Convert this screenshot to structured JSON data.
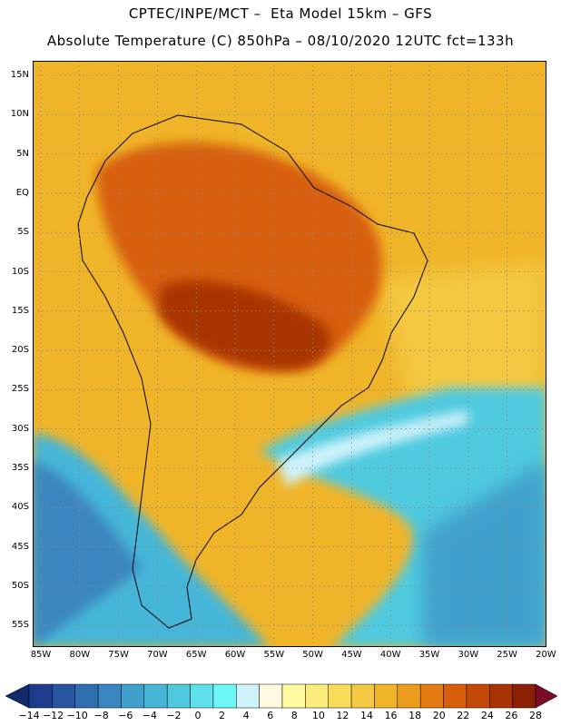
{
  "title_line1": "CPTEC/INPE/MCT –  Eta Model 15km – GFS",
  "title_line2": "Absolute Temperature (C) 850hPa – 08/10/2020 12UTC fct=133h",
  "lat_labels": [
    "15N",
    "10N",
    "5N",
    "EQ",
    "5S",
    "10S",
    "15S",
    "20S",
    "25S",
    "30S",
    "35S",
    "40S",
    "45S",
    "50S",
    "55S"
  ],
  "lon_labels": [
    "85W",
    "80W",
    "75W",
    "70W",
    "65W",
    "60W",
    "55W",
    "50W",
    "45W",
    "40W",
    "35W",
    "30W",
    "25W",
    "20W"
  ],
  "colorbar": {
    "labels": [
      "-14",
      "-12",
      "-10",
      "-8",
      "-6",
      "-4",
      "-2",
      "0",
      "2",
      "4",
      "6",
      "8",
      "10",
      "12",
      "14",
      "16",
      "18",
      "20",
      "22",
      "24",
      "26",
      "28"
    ],
    "colors": [
      "#1e3c8c",
      "#2855a0",
      "#2f6eb0",
      "#3a86c0",
      "#3fa0cc",
      "#45b6d8",
      "#4fcadf",
      "#5fe0ea",
      "#6cf6f6",
      "#cff3fb",
      "#fff9e0",
      "#fffaa0",
      "#fcec7c",
      "#f8dc5a",
      "#f4c840",
      "#f0b428",
      "#ec9c1c",
      "#e47c14",
      "#d85e0c",
      "#c24808",
      "#a83406",
      "#8c2005"
    ],
    "arrow_left_color": "#102a6c",
    "arrow_right_color": "#7a0a2a"
  },
  "colors": {
    "ocean_warm": "#f0b428",
    "land_hot": "#c24808",
    "ocean_cold": "#45b6d8",
    "coastline": "#000000"
  }
}
